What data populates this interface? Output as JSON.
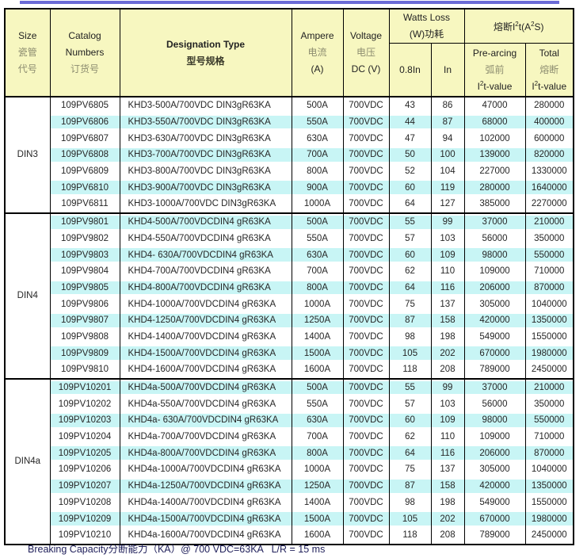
{
  "colors": {
    "top_bar": "#6b6bd6",
    "header_bg": "#f7f7c0",
    "stripe_cyan": "#c8f5f5",
    "border": "#000000",
    "footer_text": "#1f1f5a"
  },
  "table": {
    "header": {
      "size": {
        "en": "Size",
        "zh1": "瓷管",
        "zh2": "代号"
      },
      "catalog": {
        "en1": "Catalog",
        "en2": "Numbers",
        "zh": "订货号"
      },
      "designation": {
        "en": "Designation Type",
        "zh": "型号规格"
      },
      "ampere": {
        "en": "Ampere",
        "zh": "电流",
        "unit": "(A)"
      },
      "voltage": {
        "en": "Voltage",
        "zh": "电压",
        "unit": "DC (V)"
      },
      "watts": {
        "en": "Watts Loss",
        "zh": "(W)功耗",
        "sub_08in": "0.8In",
        "sub_in": "In"
      },
      "i2t": {
        "pre": "熔断I",
        "sup1": "2",
        "mid": "t(A",
        "sup2": "2",
        "post": "S)",
        "prearcing": {
          "en": "Pre-arcing",
          "zh": "弧前",
          "v_pre": "I",
          "v_sup": "2",
          "v_post": "t-value"
        },
        "total": {
          "en": "Total",
          "zh": "熔断",
          "v_pre": "I",
          "v_sup": "2",
          "v_post": "t-value"
        }
      }
    },
    "sections": [
      {
        "size": "DIN3",
        "rows": [
          [
            "109PV6805",
            "KHD3-500A/700VDC DIN3gR63KA",
            "500A",
            "700VDC",
            "43",
            "86",
            "47000",
            "280000"
          ],
          [
            "109PV6806",
            "KHD3-550A/700VDC DIN3gR63KA",
            "550A",
            "700VDC",
            "44",
            "87",
            "68000",
            "400000"
          ],
          [
            "109PV6807",
            "KHD3-630A/700VDC DIN3gR63KA",
            "630A",
            "700VDC",
            "47",
            "94",
            "102000",
            "600000"
          ],
          [
            "109PV6808",
            "KHD3-700A/700VDC DIN3gR63KA",
            "700A",
            "700VDC",
            "50",
            "100",
            "139000",
            "820000"
          ],
          [
            "109PV6809",
            "KHD3-800A/700VDC DIN3gR63KA",
            "800A",
            "700VDC",
            "52",
            "104",
            "227000",
            "1330000"
          ],
          [
            "109PV6810",
            "KHD3-900A/700VDC DIN3gR63KA",
            "900A",
            "700VDC",
            "60",
            "119",
            "280000",
            "1640000"
          ],
          [
            "109PV6811",
            "KHD3-1000A/700VDC DIN3gR63KA",
            "1000A",
            "700VDC",
            "64",
            "127",
            "385000",
            "2270000"
          ]
        ]
      },
      {
        "size": "DIN4",
        "rows": [
          [
            "109PV9801",
            "KHD4-500A/700VDCDIN4 gR63KA",
            "500A",
            "700VDC",
            "55",
            "99",
            "37000",
            "210000"
          ],
          [
            "109PV9802",
            "KHD4-550A/700VDCDIN4 gR63KA",
            "550A",
            "700VDC",
            "57",
            "103",
            "56000",
            "350000"
          ],
          [
            "109PV9803",
            "KHD4- 630A/700VDCDIN4 gR63KA",
            "630A",
            "700VDC",
            "60",
            "109",
            "98000",
            "550000"
          ],
          [
            "109PV9804",
            "KHD4-700A/700VDCDIN4 gR63KA",
            "700A",
            "700VDC",
            "62",
            "110",
            "109000",
            "710000"
          ],
          [
            "109PV9805",
            "KHD4-800A/700VDCDIN4 gR63KA",
            "800A",
            "700VDC",
            "64",
            "116",
            "206000",
            "870000"
          ],
          [
            "109PV9806",
            "KHD4-1000A/700VDCDIN4 gR63KA",
            "1000A",
            "700VDC",
            "75",
            "137",
            "305000",
            "1040000"
          ],
          [
            "109PV9807",
            "KHD4-1250A/700VDCDIN4 gR63KA",
            "1250A",
            "700VDC",
            "87",
            "158",
            "420000",
            "1350000"
          ],
          [
            "109PV9808",
            "KHD4-1400A/700VDCDIN4 gR63KA",
            "1400A",
            "700VDC",
            "98",
            "198",
            "549000",
            "1550000"
          ],
          [
            "109PV9809",
            "KHD4-1500A/700VDCDIN4 gR63KA",
            "1500A",
            "700VDC",
            "105",
            "202",
            "670000",
            "1980000"
          ],
          [
            "109PV9810",
            "KHD4-1600A/700VDCDIN4 gR63KA",
            "1600A",
            "700VDC",
            "118",
            "208",
            "789000",
            "2450000"
          ]
        ]
      },
      {
        "size": "DIN4a",
        "rows": [
          [
            "109PV10201",
            "KHD4a-500A/700VDCDIN4 gR63KA",
            "500A",
            "700VDC",
            "55",
            "99",
            "37000",
            "210000"
          ],
          [
            "109PV10202",
            "KHD4a-550A/700VDCDIN4 gR63KA",
            "550A",
            "700VDC",
            "57",
            "103",
            "56000",
            "350000"
          ],
          [
            "109PV10203",
            "KHD4a- 630A/700VDCDIN4 gR63KA",
            "630A",
            "700VDC",
            "60",
            "109",
            "98000",
            "550000"
          ],
          [
            "109PV10204",
            "KHD4a-700A/700VDCDIN4 gR63KA",
            "700A",
            "700VDC",
            "62",
            "110",
            "109000",
            "710000"
          ],
          [
            "109PV10205",
            "KHD4a-800A/700VDCDIN4 gR63KA",
            "800A",
            "700VDC",
            "64",
            "116",
            "206000",
            "870000"
          ],
          [
            "109PV10206",
            "KHD4a-1000A/700VDCDIN4 gR63KA",
            "1000A",
            "700VDC",
            "75",
            "137",
            "305000",
            "1040000"
          ],
          [
            "109PV10207",
            "KHD4a-1250A/700VDCDIN4 gR63KA",
            "1250A",
            "700VDC",
            "87",
            "158",
            "420000",
            "1350000"
          ],
          [
            "109PV10208",
            "KHD4a-1400A/700VDCDIN4 gR63KA",
            "1400A",
            "700VDC",
            "98",
            "198",
            "549000",
            "1550000"
          ],
          [
            "109PV10209",
            "KHD4a-1500A/700VDCDIN4 gR63KA",
            "1500A",
            "700VDC",
            "105",
            "202",
            "670000",
            "1980000"
          ],
          [
            "109PV10210",
            "KHD4a-1600A/700VDCDIN4 gR63KA",
            "1600A",
            "700VDC",
            "118",
            "208",
            "789000",
            "2450000"
          ]
        ]
      }
    ]
  },
  "footer": {
    "text": "Breaking Capacity分断能力（KA）@ 700 VDC=63KA   L/R = 15 ms"
  }
}
